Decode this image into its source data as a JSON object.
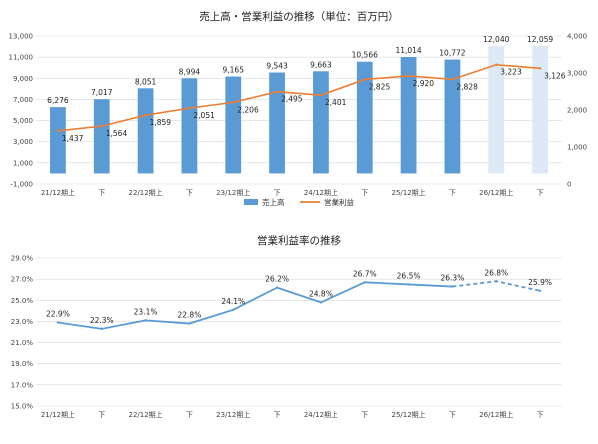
{
  "chart_data": [
    {
      "type": "bar+line",
      "title": "売上高・営業利益の推移（単位：百万円）",
      "categories": [
        "21/12期上",
        "下",
        "22/12期上",
        "下",
        "23/12期上",
        "下",
        "24/12期上",
        "下",
        "25/12期上",
        "下",
        "26/12期上",
        "下"
      ],
      "series": [
        {
          "name": "売上高",
          "kind": "bar",
          "axis": "left",
          "values": [
            6276,
            7017,
            8051,
            8994,
            9165,
            9543,
            9663,
            10566,
            11014,
            10772,
            12040,
            12059
          ],
          "labels": [
            "6,276",
            "7,017",
            "8,051",
            "8,994",
            "9,165",
            "9,543",
            "9,663",
            "10,566",
            "11,014",
            "10,772",
            "12,040",
            "12,059"
          ],
          "forecast_from_index": 10
        },
        {
          "name": "営業利益",
          "kind": "line",
          "axis": "right",
          "values": [
            1437,
            1564,
            1859,
            2051,
            2206,
            2495,
            2401,
            2825,
            2920,
            2828,
            3223,
            3126
          ],
          "labels": [
            "1,437",
            "1,564",
            "1,859",
            "2,051",
            "2,206",
            "2,495",
            "2,401",
            "2,825",
            "2,920",
            "2,828",
            "3,223",
            "3,126"
          ]
        }
      ],
      "yleft": {
        "ylim": [
          -1000,
          13000
        ],
        "ticks": [
          -1000,
          1000,
          3000,
          5000,
          7000,
          9000,
          11000,
          13000
        ],
        "tick_labels": [
          "-1,000",
          "1,000",
          "3,000",
          "5,000",
          "7,000",
          "9,000",
          "11,000",
          "13,000"
        ]
      },
      "yright": {
        "ylim": [
          0,
          4000
        ],
        "ticks": [
          0,
          1000,
          2000,
          3000,
          4000
        ],
        "tick_labels": [
          "0",
          "1,000",
          "2,000",
          "3,000",
          "4,000"
        ]
      },
      "grid": true,
      "legend": "bottom",
      "colors": {
        "bar": "#5b9bd5",
        "bar_forecast": "#dce9f6",
        "line": "#ed7d31",
        "neg_tick": "#c00000"
      }
    },
    {
      "type": "line",
      "title": "営業利益率の推移",
      "categories": [
        "21/12期上",
        "下",
        "22/12期上",
        "下",
        "23/12期上",
        "下",
        "24/12期上",
        "下",
        "25/12期上",
        "下",
        "26/12期上",
        "下"
      ],
      "series": [
        {
          "name": "営業利益率",
          "values": [
            22.9,
            22.3,
            23.1,
            22.8,
            24.1,
            26.2,
            24.8,
            26.7,
            26.5,
            26.3,
            26.8,
            25.9
          ],
          "labels": [
            "22.9%",
            "22.3%",
            "23.1%",
            "22.8%",
            "24.1%",
            "26.2%",
            "24.8%",
            "26.7%",
            "26.5%",
            "26.3%",
            "26.8%",
            "25.9%"
          ],
          "forecast_from_index": 10
        }
      ],
      "ylim": [
        15,
        29
      ],
      "ticks": [
        15,
        17,
        19,
        21,
        23,
        25,
        27,
        29
      ],
      "tick_labels": [
        "15.0%",
        "17.0%",
        "19.0%",
        "21.0%",
        "23.0%",
        "25.0%",
        "27.0%",
        "29.0%"
      ],
      "grid": true,
      "colors": {
        "line": "#5b9bd5"
      }
    }
  ]
}
